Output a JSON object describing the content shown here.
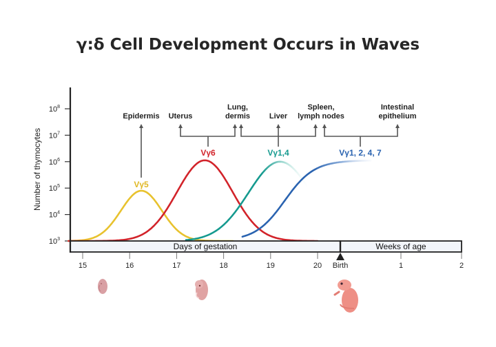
{
  "title": "γ:δ Cell Development Occurs in Waves",
  "chart_data": {
    "type": "line",
    "title": "γ:δ Cell Development Occurs in Waves",
    "ylabel": "Number of thymocytes",
    "yscale": "log",
    "ylim_log10": [
      3,
      8
    ],
    "yticks": [
      {
        "base": "10",
        "exp": "3",
        "log10": 3
      },
      {
        "base": "10",
        "exp": "4",
        "log10": 4
      },
      {
        "base": "10",
        "exp": "5",
        "log10": 5
      },
      {
        "base": "10",
        "exp": "6",
        "log10": 6
      },
      {
        "base": "10",
        "exp": "7",
        "log10": 7
      },
      {
        "base": "10",
        "exp": "8",
        "log10": 8
      }
    ],
    "x_segments": [
      {
        "label": "Days of gestation",
        "range": [
          14.7,
          20.5
        ],
        "ticks": [
          {
            "v": 15,
            "label": "15"
          },
          {
            "v": 16,
            "label": "16"
          },
          {
            "v": 17,
            "label": "17"
          },
          {
            "v": 18,
            "label": "18"
          },
          {
            "v": 19,
            "label": "19"
          },
          {
            "v": 20,
            "label": "20"
          }
        ]
      },
      {
        "label": "Weeks of age",
        "range": [
          0,
          2
        ],
        "ticks": [
          {
            "v": 1,
            "label": "1"
          },
          {
            "v": 2,
            "label": "2"
          }
        ]
      }
    ],
    "birth_marker": {
      "label": "Birth",
      "day": 20.5
    },
    "series": [
      {
        "name": "Vγ5",
        "color": "#e8c22e",
        "shape": "peak",
        "peak_day": 16.25,
        "peak_log10": 4.9,
        "width_days": 0.55,
        "start_day": 14.7,
        "end_day": 18.2,
        "fade": false
      },
      {
        "name": "Vγ6",
        "color": "#d2232a",
        "shape": "peak",
        "peak_day": 17.6,
        "peak_log10": 6.05,
        "width_days": 0.75,
        "start_day": 14.7,
        "end_day": 20.0,
        "fade": false
      },
      {
        "name": "Vγ1,4",
        "color": "#159a8f",
        "shape": "peak",
        "peak_day": 19.2,
        "peak_log10": 6.0,
        "width_days": 0.85,
        "start_day": 17.2,
        "end_day": 19.8,
        "fade": true,
        "fade_color": "#b5e3dc"
      },
      {
        "name": "Vγ1, 2, 4, 7",
        "color": "#2a63b0",
        "shape": "sigmoid",
        "mid_day": 19.3,
        "plateau_log10": 6.05,
        "rate": 3.2,
        "start_day": 18.4,
        "end_week": 0.5,
        "fade": true,
        "fade_color": "#e8eef8"
      }
    ],
    "annotations": [
      {
        "series": "Vγ5",
        "tissues": [
          "Epidermis"
        ]
      },
      {
        "series": "Vγ6",
        "tissues": [
          "Uterus",
          "Lung, dermis"
        ]
      },
      {
        "series": "Vγ1,4",
        "tissues": [
          "Lung, dermis",
          "Liver",
          "Spleen, lymph nodes"
        ]
      },
      {
        "series": "Vγ1, 2, 4, 7",
        "tissues": [
          "Spleen, lymph nodes",
          "Intestinal epithelium"
        ]
      }
    ],
    "grid": false,
    "legend": "inline labels"
  },
  "tissues": {
    "epidermis": "Epidermis",
    "uterus": "Uterus",
    "lung_line1": "Lung,",
    "lung_line2": "dermis",
    "liver": "Liver",
    "spleen_line1": "Spleen,",
    "spleen_line2": "lymph nodes",
    "intestinal_line1": "Intestinal",
    "intestinal_line2": "epithelium"
  },
  "illustrations": [
    {
      "name": "embryo-early",
      "stage": "day 15"
    },
    {
      "name": "embryo-mid",
      "stage": "day 17"
    },
    {
      "name": "newborn-pup",
      "stage": "birth"
    }
  ]
}
